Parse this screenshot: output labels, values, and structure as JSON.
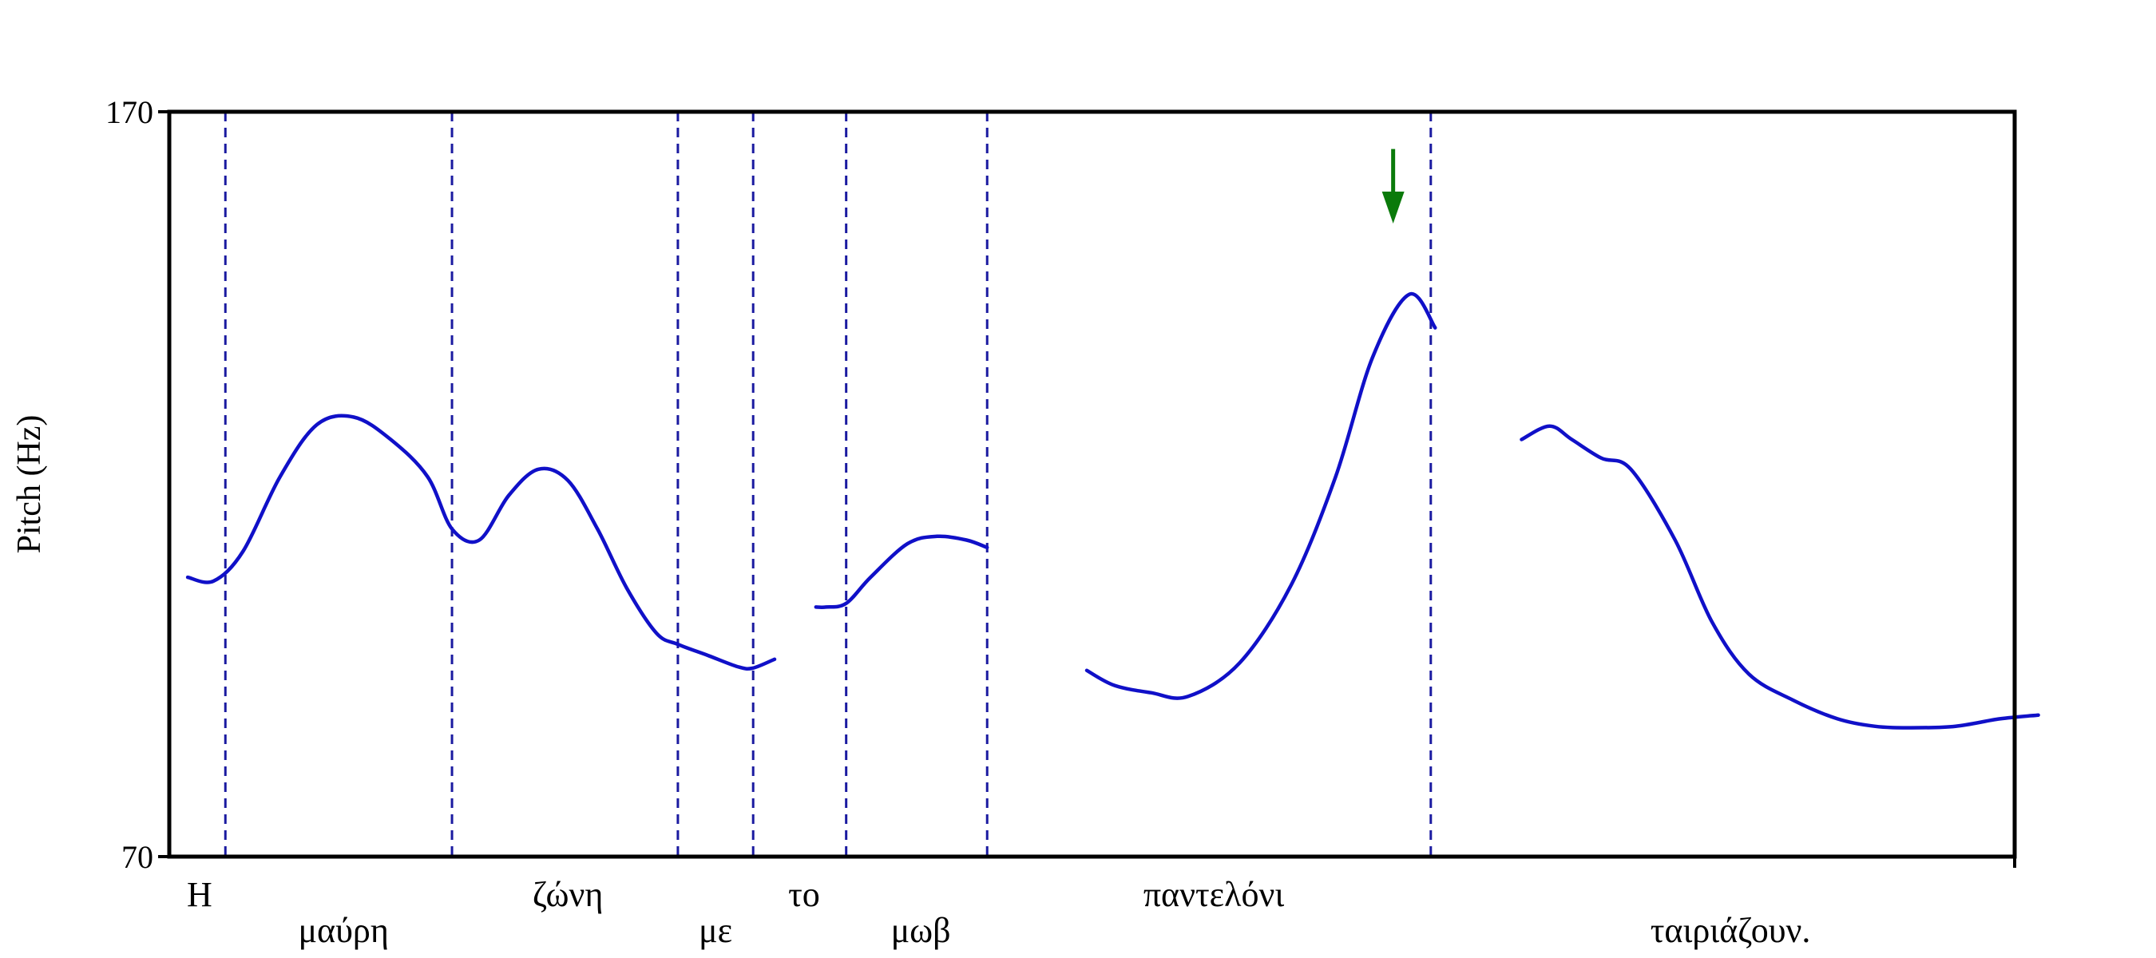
{
  "chart_data": {
    "type": "line",
    "xlabel": "",
    "ylabel": "Pitch (Hz)",
    "ylim": [
      70,
      170
    ],
    "y_ticks": [
      "170",
      "70"
    ],
    "grid": false,
    "legend": "none",
    "colors": {
      "contour": "#1010c8",
      "boundary": "#1a1aa0",
      "arrow": "#0a7a0a",
      "frame": "#000000"
    },
    "boundaries": [
      0.076,
      0.383,
      0.689,
      0.791,
      0.917,
      1.108,
      1.709
    ],
    "words": [
      {
        "text": "Η",
        "row": 1,
        "x": 0.041
      },
      {
        "text": "μαύρη",
        "row": 2,
        "x": 0.236
      },
      {
        "text": "ζώνη",
        "row": 1,
        "x": 0.54
      },
      {
        "text": "με",
        "row": 2,
        "x": 0.74
      },
      {
        "text": "το",
        "row": 1,
        "x": 0.86
      },
      {
        "text": "μωβ",
        "row": 2,
        "x": 1.018
      },
      {
        "text": "παντελόνι",
        "row": 1,
        "x": 1.415
      },
      {
        "text": "ταιριάζουν.",
        "row": 2,
        "x": 2.115
      }
    ],
    "series": [
      {
        "x": [
          0.025,
          0.06,
          0.1,
          0.15,
          0.2,
          0.25,
          0.3,
          0.35,
          0.383,
          0.42,
          0.46,
          0.5,
          0.54,
          0.58,
          0.62,
          0.66,
          0.689,
          0.73,
          0.77,
          0.79,
          0.82
        ],
        "y": [
          107.5,
          107.0,
          111.0,
          121.0,
          128.0,
          129.0,
          126.0,
          121.0,
          114.0,
          112.5,
          118.5,
          122.0,
          120.5,
          114.0,
          106.0,
          100.0,
          98.5,
          97.0,
          95.5,
          95.3,
          96.5
        ]
      },
      {
        "x": [
          0.876,
          0.89,
          0.917,
          0.95,
          1.0,
          1.04,
          1.08,
          1.108
        ],
        "y": [
          103.5,
          103.5,
          104.0,
          107.5,
          112.0,
          113.0,
          112.5,
          111.5
        ]
      },
      {
        "x": [
          1.243,
          1.28,
          1.33,
          1.38,
          1.45,
          1.52,
          1.58,
          1.63,
          1.68,
          1.715
        ],
        "y": [
          95.0,
          93.0,
          92.0,
          91.5,
          96.0,
          106.5,
          121.0,
          137.0,
          145.5,
          141.0
        ]
      },
      {
        "x": [
          1.832,
          1.87,
          1.9,
          1.94,
          1.98,
          2.04,
          2.09,
          2.14,
          2.2,
          2.26,
          2.31,
          2.36,
          2.42,
          2.48,
          2.532
        ],
        "y": [
          126.0,
          127.8,
          126.0,
          123.5,
          122.0,
          112.5,
          101.5,
          94.5,
          91.0,
          88.5,
          87.5,
          87.3,
          87.5,
          88.5,
          89.0
        ]
      }
    ],
    "annotation": {
      "type": "arrow",
      "x": 1.658,
      "y_from": 165.0,
      "y_to": 155.0
    }
  }
}
